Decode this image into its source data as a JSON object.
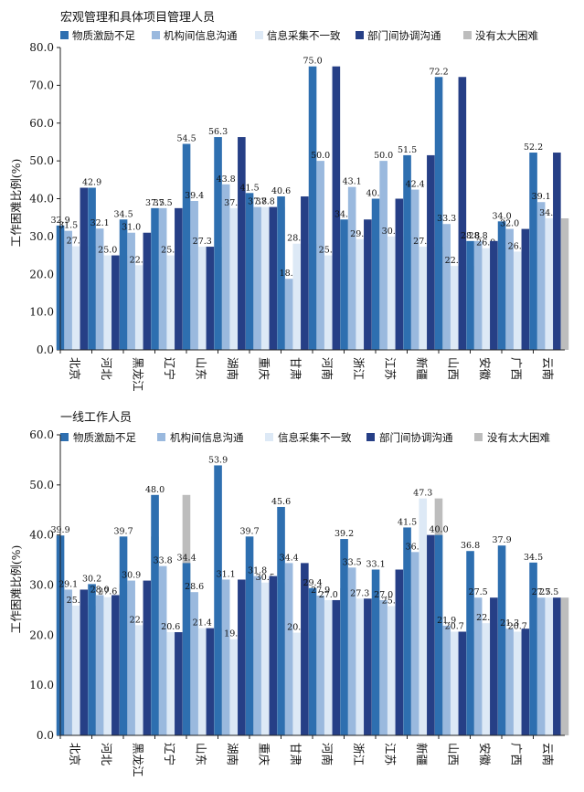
{
  "colors": {
    "series": [
      "#2e6fb0",
      "#9ab9de",
      "#dde9f6",
      "#263f86",
      "#bdbdbd"
    ],
    "axis": "#222222",
    "background": "#ffffff"
  },
  "chart_data": [
    {
      "type": "bar",
      "title": "宏观管理和具体项目管理人员",
      "ylabel": "工作困难比例(%)",
      "xlabel": "",
      "ylim": [
        0,
        80
      ],
      "yticks": [
        "0.0",
        "10.0",
        "20.0",
        "30.0",
        "40.0",
        "50.0",
        "60.0",
        "70.0",
        "80.0"
      ],
      "grid": false,
      "legend_position": "top",
      "categories": [
        "北京",
        "河北",
        "黑龙江",
        "辽宁",
        "山东",
        "湖南",
        "重庆",
        "甘肃",
        "河南",
        "浙江",
        "江苏",
        "新疆",
        "山西",
        "安徽",
        "广西",
        "云南"
      ],
      "series": [
        {
          "name": "物质激励不足",
          "values": [
            32.9,
            42.9,
            34.5,
            37.5,
            54.5,
            56.3,
            41.5,
            40.6,
            75.0,
            34.5,
            40.0,
            51.5,
            72.2,
            28.8,
            34.0,
            52.2
          ],
          "labels": [
            "32.9",
            "42.9",
            "34.5",
            "37.5",
            "54.5",
            "56.3",
            "41.5",
            "40.6",
            "75.0",
            "34.5",
            "40.0",
            "51.5",
            "72.2",
            "28.8",
            "34.0",
            "52.2"
          ]
        },
        {
          "name": "机构间信息沟通",
          "values": [
            31.5,
            32.1,
            31.0,
            37.5,
            39.4,
            43.8,
            37.8,
            18.8,
            50.0,
            43.1,
            50.0,
            42.4,
            33.3,
            28.8,
            32.0,
            39.1
          ],
          "labels": [
            "31.5",
            "32.1",
            "31.0",
            "37.5",
            "39.4",
            "43.8",
            "37.8",
            "18.8",
            "50.0",
            "43.1",
            "50.0",
            "42.4",
            "33.3",
            "28.8",
            "32.0",
            "39.1"
          ]
        },
        {
          "name": "信息采集不一致",
          "values": [
            27.4,
            25.0,
            22.4,
            25.0,
            27.3,
            37.5,
            37.8,
            28.1,
            25.0,
            29.3,
            30.0,
            27.3,
            22.2,
            26.9,
            26.0,
            34.8
          ],
          "labels": [
            "27.4",
            "25.0",
            "22.4",
            "25.0",
            "27.3",
            "37.5",
            "37.8",
            "28.1",
            "25.0",
            "29.3",
            "30.0",
            "27.3",
            "22.2",
            "26.9",
            "26.0",
            "34.8"
          ]
        },
        {
          "name": "部门间协调沟通",
          "values": [
            42.9,
            25.0,
            31.0,
            37.5,
            27.3,
            56.3,
            37.8,
            40.6,
            75.0,
            34.5,
            40.0,
            51.5,
            72.2,
            28.8,
            32.0,
            52.2
          ],
          "labels": [
            "",
            "",
            "",
            "",
            "",
            "",
            "",
            "",
            "",
            "",
            "",
            "",
            "",
            "",
            "",
            ""
          ]
        },
        {
          "name": "没有太大困难",
          "values": [
            27.4,
            25.0,
            22.4,
            25.0,
            27.3,
            37.5,
            37.8,
            28.1,
            25.0,
            29.3,
            30.0,
            27.3,
            22.2,
            26.9,
            26.0,
            34.8
          ],
          "labels": [
            "",
            "",
            "",
            "",
            "",
            "",
            "",
            "",
            "",
            "",
            "",
            "",
            "",
            "",
            "",
            ""
          ]
        }
      ]
    },
    {
      "type": "bar",
      "title": "一线工作人员",
      "ylabel": "工作困难比例(%)",
      "xlabel": "",
      "ylim": [
        0,
        60
      ],
      "yticks": [
        "0.0",
        "10.0",
        "20.0",
        "30.0",
        "40.0",
        "50.0",
        "60.0"
      ],
      "grid": false,
      "legend_position": "top",
      "categories": [
        "北京",
        "河北",
        "黑龙江",
        "辽宁",
        "山东",
        "湖南",
        "重庆",
        "甘肃",
        "河南",
        "浙江",
        "江苏",
        "新疆",
        "山西",
        "安徽",
        "广西",
        "云南"
      ],
      "series": [
        {
          "name": "物质激励不足",
          "values": [
            39.9,
            30.2,
            39.7,
            48.0,
            34.4,
            53.9,
            39.7,
            45.6,
            29.4,
            39.2,
            33.1,
            41.5,
            40.0,
            36.8,
            37.9,
            34.5
          ],
          "labels": [
            "39.9",
            "30.2",
            "39.7",
            "48.0",
            "34.4",
            "53.9",
            "39.7",
            "45.6",
            "29.4",
            "39.2",
            "33.1",
            "41.5",
            "40.0",
            "36.8",
            "37.9",
            "34.5"
          ]
        },
        {
          "name": "机构间信息沟通",
          "values": [
            29.1,
            28.0,
            30.9,
            33.8,
            28.6,
            31.1,
            31.8,
            34.4,
            27.9,
            33.5,
            27.0,
            36.6,
            21.9,
            27.5,
            21.3,
            27.5
          ],
          "labels": [
            "29.1",
            "28.0",
            "30.9",
            "33.8",
            "28.6",
            "31.1",
            "31.8",
            "34.4",
            "27.9",
            "33.5",
            "27.0",
            "36.6",
            "21.9",
            "27.5",
            "21.3",
            "27.5"
          ]
        },
        {
          "name": "信息采集不一致",
          "values": [
            25.9,
            27.6,
            22.0,
            20.6,
            21.4,
            19.2,
            30.5,
            20.5,
            27.0,
            27.3,
            25.8,
            47.3,
            20.7,
            22.4,
            20.7,
            27.5
          ],
          "labels": [
            "25.9",
            "27.6",
            "22.0",
            "20.6",
            "21.4",
            "19.2",
            "30.5",
            "20.5",
            "27.0",
            "27.3",
            "25.8",
            "47.3",
            "20.7",
            "22.4",
            "20.7",
            "27.5"
          ]
        },
        {
          "name": "部门间协调沟通",
          "values": [
            29.1,
            28.0,
            30.9,
            20.6,
            21.4,
            31.1,
            31.8,
            34.4,
            27.0,
            27.3,
            33.1,
            40.0,
            20.7,
            27.5,
            21.3,
            27.5
          ],
          "labels": [
            "",
            "",
            "",
            "",
            "",
            "",
            "",
            "",
            "",
            "",
            "",
            "",
            "",
            "",
            "",
            ""
          ]
        },
        {
          "name": "没有太大困难",
          "values": [
            25.9,
            30.2,
            39.7,
            48.0,
            21.4,
            19.2,
            30.5,
            20.5,
            29.4,
            27.3,
            25.8,
            47.3,
            20.7,
            22.4,
            20.7,
            27.5
          ],
          "labels": [
            "",
            "",
            "",
            "",
            "",
            "",
            "",
            "",
            "",
            "",
            "",
            "",
            "",
            "",
            "",
            ""
          ]
        }
      ]
    }
  ]
}
